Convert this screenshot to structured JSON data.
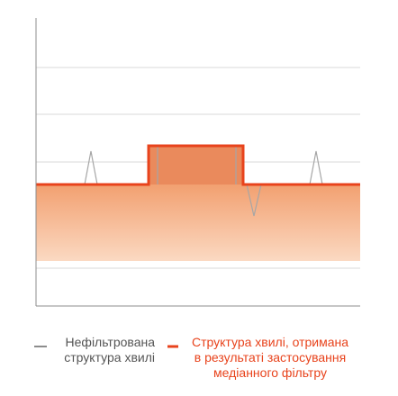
{
  "legend": [
    {
      "lines": [
        "Нефільтрована",
        "структура хвилі"
      ]
    },
    {
      "lines": [
        "Структура хвилі, отримана",
        "в результаті застосування",
        "медіанного фільтру"
      ]
    }
  ]
}
